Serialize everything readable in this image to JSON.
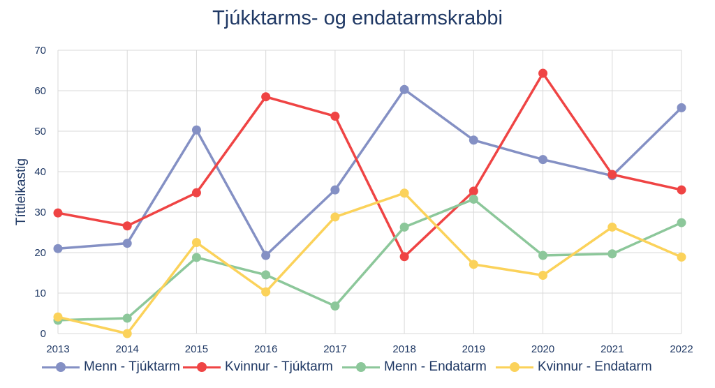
{
  "chart_data": {
    "type": "line",
    "title": "Tjúkktarms- og endatarmskrabbi",
    "xlabel": "",
    "ylabel": "Títtleikastig",
    "ylim": [
      0,
      70
    ],
    "yticks": [
      0,
      10,
      20,
      30,
      40,
      50,
      60,
      70
    ],
    "categories": [
      "2013",
      "2014",
      "2015",
      "2016",
      "2017",
      "2018",
      "2019",
      "2020",
      "2021",
      "2022"
    ],
    "grid": true,
    "legend_position": "bottom",
    "series": [
      {
        "name": "Menn - Tjúktarm",
        "color": "#8490c4",
        "values": [
          21,
          22.3,
          50.3,
          19.3,
          35.5,
          60.3,
          47.8,
          43,
          39,
          55.8
        ]
      },
      {
        "name": "Kvinnur - Tjúktarm",
        "color": "#ef4444",
        "values": [
          29.8,
          26.6,
          34.8,
          58.5,
          53.7,
          19,
          35.2,
          64.3,
          39.3,
          35.5
        ]
      },
      {
        "name": "Menn - Endatarm",
        "color": "#8cc79a",
        "values": [
          3.3,
          3.8,
          18.8,
          14.5,
          6.8,
          26.3,
          33.2,
          19.3,
          19.7,
          27.4
        ]
      },
      {
        "name": "Kvinnur - Endatarm",
        "color": "#fbd25a",
        "values": [
          4.1,
          0,
          22.5,
          10.3,
          28.8,
          34.7,
          17.1,
          14.4,
          26.3,
          18.9
        ]
      }
    ]
  }
}
